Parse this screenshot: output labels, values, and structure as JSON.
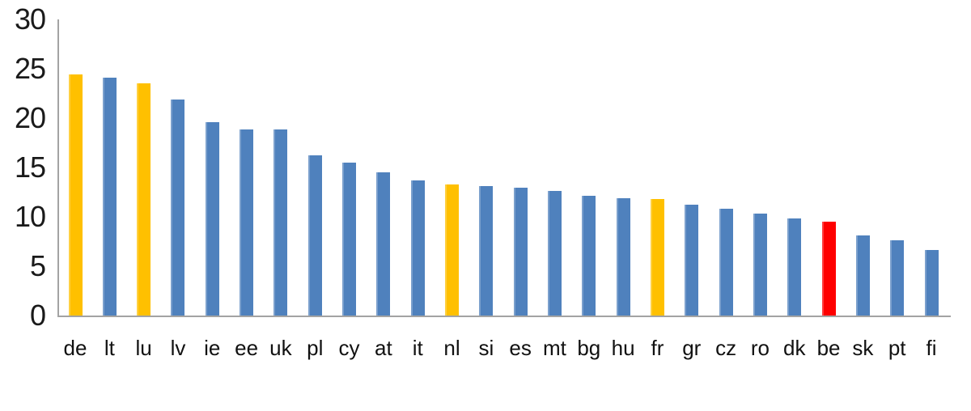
{
  "chart_data": {
    "type": "bar",
    "categories": [
      "de",
      "lt",
      "lu",
      "lv",
      "ie",
      "ee",
      "uk",
      "pl",
      "cy",
      "at",
      "it",
      "nl",
      "si",
      "es",
      "mt",
      "bg",
      "hu",
      "fr",
      "gr",
      "cz",
      "ro",
      "dk",
      "be",
      "sk",
      "pt",
      "fi"
    ],
    "values": [
      24.5,
      24.2,
      23.6,
      22.0,
      19.7,
      18.9,
      18.9,
      16.3,
      15.6,
      14.6,
      13.8,
      13.4,
      13.2,
      13.0,
      12.7,
      12.2,
      12.0,
      11.9,
      11.3,
      10.9,
      10.4,
      9.9,
      9.6,
      8.2,
      7.7,
      6.7
    ],
    "bar_colors": [
      "gold",
      "blue",
      "gold",
      "blue",
      "blue",
      "blue",
      "blue",
      "blue",
      "blue",
      "blue",
      "blue",
      "gold",
      "blue",
      "blue",
      "blue",
      "blue",
      "blue",
      "gold",
      "blue",
      "blue",
      "blue",
      "blue",
      "red",
      "blue",
      "blue",
      "blue"
    ],
    "colors": {
      "blue": "#4F81BD",
      "gold": "#FFC000",
      "red": "#FF0000",
      "axis": "#A3A3A3",
      "text": "#1A1A1A"
    },
    "ylim": [
      0,
      30
    ],
    "yticks": [
      0,
      5,
      10,
      15,
      20,
      25,
      30
    ],
    "grid": false,
    "legend": false,
    "highlighted_gold": [
      "de",
      "lu",
      "nl",
      "fr"
    ],
    "highlighted_red": [
      "be"
    ]
  }
}
